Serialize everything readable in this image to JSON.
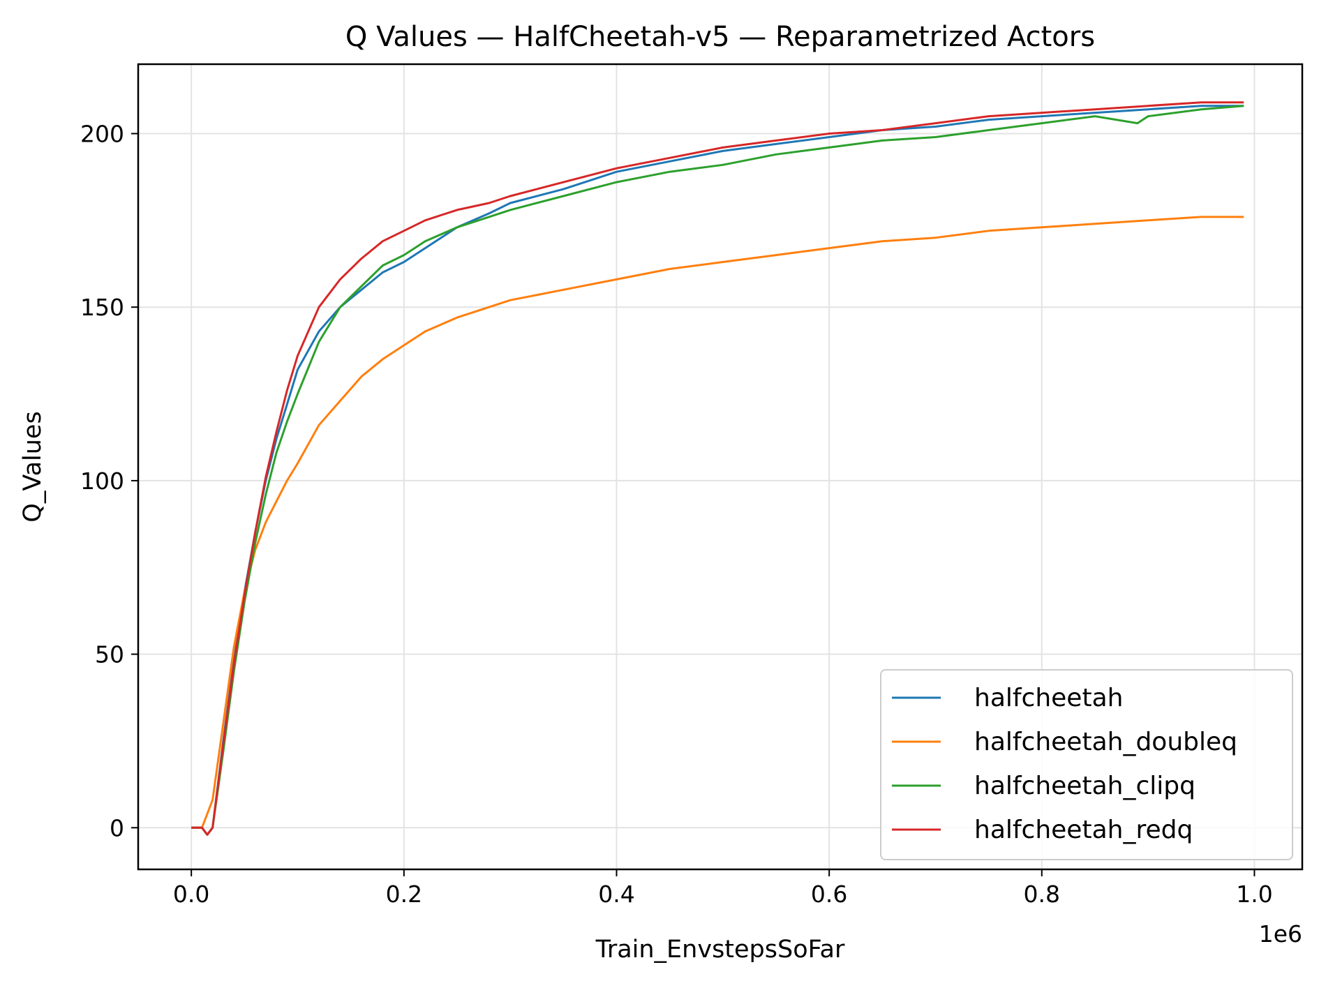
{
  "chart_data": {
    "type": "line",
    "title": "Q Values — HalfCheetah-v5 — Reparametrized Actors",
    "xlabel": "Train_EnvstepsSoFar",
    "ylabel": "Q_Values",
    "x_offset_label": "1e6",
    "xlim": [
      -0.05,
      1.045
    ],
    "ylim": [
      -12,
      220
    ],
    "x_ticks": [
      0.0,
      0.2,
      0.4,
      0.6,
      0.8,
      1.0
    ],
    "x_tick_labels": [
      "0.0",
      "0.2",
      "0.4",
      "0.6",
      "0.8",
      "1.0"
    ],
    "y_ticks": [
      0,
      50,
      100,
      150,
      200
    ],
    "y_tick_labels": [
      "0",
      "50",
      "100",
      "150",
      "200"
    ],
    "grid": true,
    "legend_position": "lower-right",
    "series": [
      {
        "name": "halfcheetah",
        "color": "#1f77b4",
        "x": [
          0.0,
          0.01,
          0.015,
          0.02,
          0.03,
          0.04,
          0.05,
          0.06,
          0.07,
          0.08,
          0.09,
          0.1,
          0.12,
          0.14,
          0.16,
          0.18,
          0.2,
          0.22,
          0.25,
          0.28,
          0.3,
          0.35,
          0.4,
          0.45,
          0.5,
          0.55,
          0.6,
          0.65,
          0.7,
          0.75,
          0.8,
          0.85,
          0.9,
          0.95,
          0.99
        ],
        "y": [
          0,
          0,
          -2,
          0,
          25,
          48,
          68,
          85,
          100,
          112,
          122,
          132,
          143,
          150,
          155,
          160,
          163,
          167,
          173,
          177,
          180,
          184,
          189,
          192,
          195,
          197,
          199,
          201,
          202,
          204,
          205,
          206,
          207,
          208,
          208
        ]
      },
      {
        "name": "halfcheetah_doubleq",
        "color": "#ff7f0e",
        "x": [
          0.0,
          0.01,
          0.02,
          0.03,
          0.04,
          0.05,
          0.06,
          0.07,
          0.08,
          0.09,
          0.1,
          0.12,
          0.14,
          0.16,
          0.18,
          0.2,
          0.22,
          0.25,
          0.28,
          0.3,
          0.35,
          0.4,
          0.45,
          0.5,
          0.55,
          0.6,
          0.65,
          0.7,
          0.75,
          0.8,
          0.85,
          0.9,
          0.95,
          0.99
        ],
        "y": [
          0,
          0,
          8,
          30,
          52,
          68,
          80,
          88,
          94,
          100,
          105,
          116,
          123,
          130,
          135,
          139,
          143,
          147,
          150,
          152,
          155,
          158,
          161,
          163,
          165,
          167,
          169,
          170,
          172,
          173,
          174,
          175,
          176,
          176
        ]
      },
      {
        "name": "halfcheetah_clipq",
        "color": "#2ca02c",
        "x": [
          0.0,
          0.01,
          0.015,
          0.02,
          0.03,
          0.04,
          0.05,
          0.06,
          0.07,
          0.08,
          0.09,
          0.1,
          0.12,
          0.14,
          0.16,
          0.18,
          0.2,
          0.22,
          0.25,
          0.28,
          0.3,
          0.35,
          0.4,
          0.45,
          0.5,
          0.55,
          0.6,
          0.65,
          0.7,
          0.75,
          0.8,
          0.85,
          0.89,
          0.9,
          0.95,
          0.99
        ],
        "y": [
          0,
          0,
          -2,
          0,
          22,
          45,
          65,
          82,
          96,
          108,
          117,
          125,
          140,
          150,
          156,
          162,
          165,
          169,
          173,
          176,
          178,
          182,
          186,
          189,
          191,
          194,
          196,
          198,
          199,
          201,
          203,
          205,
          203,
          205,
          207,
          208
        ]
      },
      {
        "name": "halfcheetah_redq",
        "color": "#d62728",
        "x": [
          0.0,
          0.01,
          0.015,
          0.02,
          0.03,
          0.04,
          0.05,
          0.06,
          0.07,
          0.08,
          0.09,
          0.1,
          0.12,
          0.14,
          0.16,
          0.18,
          0.2,
          0.22,
          0.25,
          0.28,
          0.3,
          0.35,
          0.4,
          0.45,
          0.5,
          0.55,
          0.6,
          0.65,
          0.7,
          0.75,
          0.8,
          0.85,
          0.9,
          0.95,
          0.99
        ],
        "y": [
          0,
          0,
          -2,
          0,
          24,
          47,
          67,
          85,
          101,
          114,
          126,
          136,
          150,
          158,
          164,
          169,
          172,
          175,
          178,
          180,
          182,
          186,
          190,
          193,
          196,
          198,
          200,
          201,
          203,
          205,
          206,
          207,
          208,
          209,
          209
        ]
      }
    ]
  }
}
